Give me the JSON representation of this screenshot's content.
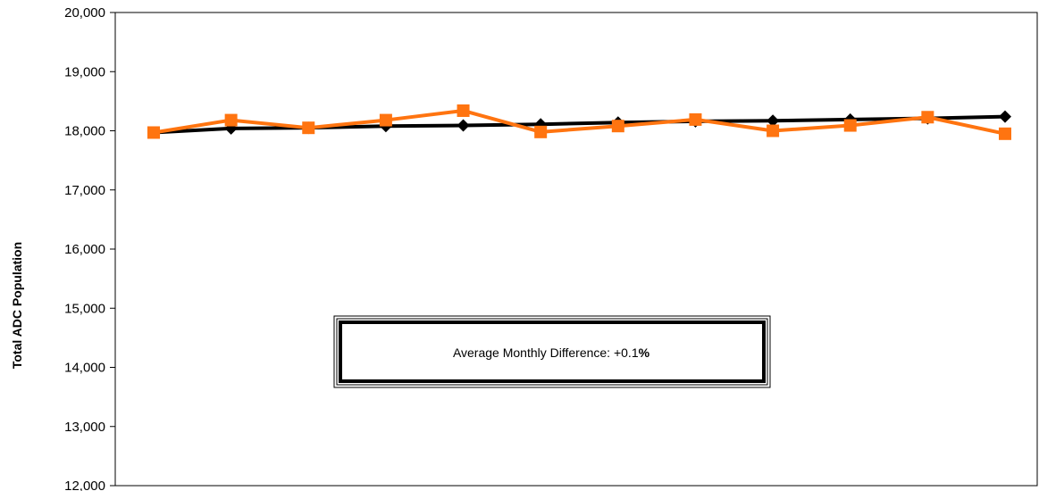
{
  "chart_data": {
    "type": "line",
    "ylabel": "Total ADC Population",
    "ylim": [
      12000,
      20000
    ],
    "y_ticks": [
      "12,000",
      "13,000",
      "14,000",
      "15,000",
      "16,000",
      "17,000",
      "18,000",
      "19,000",
      "20,000"
    ],
    "y_tick_values": [
      12000,
      13000,
      14000,
      15000,
      16000,
      17000,
      18000,
      19000,
      20000
    ],
    "grid": false,
    "x": [
      1,
      2,
      3,
      4,
      5,
      6,
      7,
      8,
      9,
      10,
      11,
      12
    ],
    "series": [
      {
        "color": "#000000",
        "marker": "diamond",
        "values": [
          17970,
          18040,
          18050,
          18080,
          18090,
          18110,
          18140,
          18160,
          18170,
          18190,
          18210,
          18240
        ]
      },
      {
        "color": "#ff7410",
        "marker": "square",
        "values": [
          17970,
          18180,
          18050,
          18180,
          18340,
          17980,
          18080,
          18190,
          18000,
          18090,
          18230,
          17950
        ]
      }
    ],
    "annotation": {
      "prefix": "Average Monthly Difference: +0.1",
      "suffix": "%"
    }
  }
}
